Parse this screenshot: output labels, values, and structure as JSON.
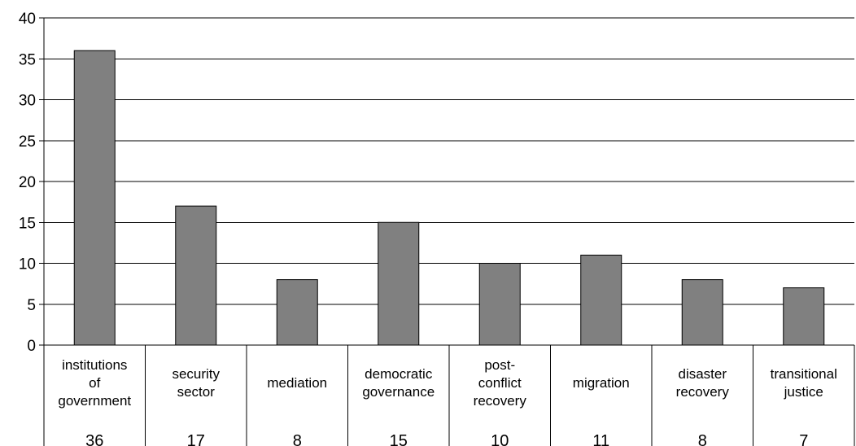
{
  "chart_data": {
    "type": "bar",
    "title": "",
    "xlabel": "",
    "ylabel": "",
    "ylim": [
      0,
      40
    ],
    "yticks": [
      0,
      5,
      10,
      15,
      20,
      25,
      30,
      35,
      40
    ],
    "grid": true,
    "categories": [
      [
        "institutions",
        "of",
        "government"
      ],
      [
        "security",
        "sector"
      ],
      [
        "mediation"
      ],
      [
        "democratic",
        "governance"
      ],
      [
        "post-",
        "conflict",
        "recovery"
      ],
      [
        "migration"
      ],
      [
        "disaster",
        "recovery"
      ],
      [
        "transitional",
        "justice"
      ]
    ],
    "values": [
      36,
      17,
      8,
      15,
      10,
      11,
      8,
      7
    ],
    "value_labels": [
      "36",
      "17",
      "8",
      "15",
      "10",
      "11",
      "8",
      "7"
    ],
    "colors": {
      "bar": "#808080",
      "bar_stroke": "#000000",
      "grid": "#000000",
      "text": "#000000"
    }
  }
}
